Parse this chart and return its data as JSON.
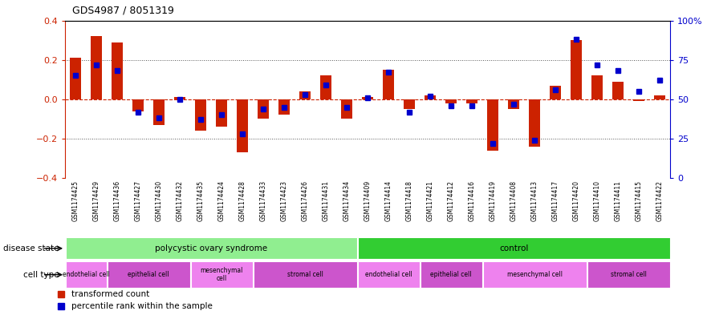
{
  "title": "GDS4987 / 8051319",
  "samples": [
    "GSM1174425",
    "GSM1174429",
    "GSM1174436",
    "GSM1174427",
    "GSM1174430",
    "GSM1174432",
    "GSM1174435",
    "GSM1174424",
    "GSM1174428",
    "GSM1174433",
    "GSM1174423",
    "GSM1174426",
    "GSM1174431",
    "GSM1174434",
    "GSM1174409",
    "GSM1174414",
    "GSM1174418",
    "GSM1174421",
    "GSM1174412",
    "GSM1174416",
    "GSM1174419",
    "GSM1174408",
    "GSM1174413",
    "GSM1174417",
    "GSM1174420",
    "GSM1174410",
    "GSM1174411",
    "GSM1174415",
    "GSM1174422"
  ],
  "bar_values": [
    0.21,
    0.32,
    0.29,
    -0.06,
    -0.13,
    0.01,
    -0.16,
    -0.14,
    -0.27,
    -0.1,
    -0.08,
    0.04,
    0.12,
    -0.1,
    0.01,
    0.15,
    -0.05,
    0.02,
    -0.02,
    -0.02,
    -0.26,
    -0.05,
    -0.24,
    0.07,
    0.3,
    0.12,
    0.09,
    -0.01,
    0.02
  ],
  "pct_values": [
    65,
    72,
    68,
    42,
    38,
    50,
    37,
    40,
    28,
    44,
    45,
    53,
    59,
    45,
    51,
    67,
    42,
    52,
    46,
    46,
    22,
    47,
    24,
    56,
    88,
    72,
    68,
    55,
    62
  ],
  "disease_state_groups": [
    {
      "label": "polycystic ovary syndrome",
      "start": 0,
      "end": 14,
      "color": "#90ee90"
    },
    {
      "label": "control",
      "start": 14,
      "end": 29,
      "color": "#32cd32"
    }
  ],
  "cell_type_groups": [
    {
      "label": "endothelial cell",
      "start": 0,
      "end": 2,
      "color": "#ee82ee"
    },
    {
      "label": "epithelial cell",
      "start": 2,
      "end": 6,
      "color": "#cc55cc"
    },
    {
      "label": "mesenchymal\ncell",
      "start": 6,
      "end": 9,
      "color": "#ee82ee"
    },
    {
      "label": "stromal cell",
      "start": 9,
      "end": 14,
      "color": "#cc55cc"
    },
    {
      "label": "endothelial cell",
      "start": 14,
      "end": 17,
      "color": "#ee82ee"
    },
    {
      "label": "epithelial cell",
      "start": 17,
      "end": 20,
      "color": "#cc55cc"
    },
    {
      "label": "mesenchymal cell",
      "start": 20,
      "end": 25,
      "color": "#ee82ee"
    },
    {
      "label": "stromal cell",
      "start": 25,
      "end": 29,
      "color": "#cc55cc"
    }
  ],
  "bar_color": "#cc2200",
  "pct_color": "#0000cc",
  "zero_line_color": "#cc2200",
  "dotted_line_color": "#555555",
  "ylim": [
    -0.4,
    0.4
  ],
  "y2lim": [
    0,
    100
  ],
  "yticks": [
    -0.4,
    -0.2,
    0.0,
    0.2,
    0.4
  ],
  "y2ticks": [
    0,
    25,
    50,
    75,
    100
  ],
  "y2ticklabels": [
    "0",
    "25",
    "50",
    "75",
    "100%"
  ],
  "legend_items": [
    {
      "label": "transformed count",
      "color": "#cc2200"
    },
    {
      "label": "percentile rank within the sample",
      "color": "#0000cc"
    }
  ],
  "disease_state_label": "disease state",
  "cell_type_label": "cell type",
  "xtick_bg": "#d0d0d0"
}
